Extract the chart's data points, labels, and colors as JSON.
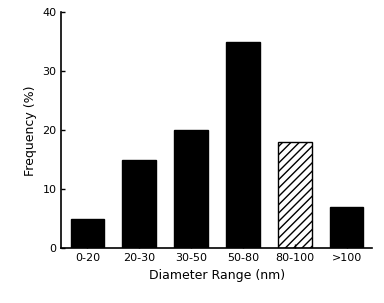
{
  "categories": [
    "0-20",
    "20-30",
    "30-50",
    "50-80",
    "80-100",
    ">100"
  ],
  "values": [
    5,
    15,
    20,
    35,
    18,
    7
  ],
  "bar_colors": [
    "black",
    "black",
    "black",
    "black",
    "white",
    "black"
  ],
  "hatch_patterns": [
    null,
    null,
    null,
    null,
    "////",
    null
  ],
  "xlabel": "Diameter Range (nm)",
  "ylabel": "Frequency (%)",
  "ylim": [
    0,
    40
  ],
  "yticks": [
    0,
    10,
    20,
    30,
    40
  ],
  "bar_width": 0.65,
  "edgecolor": "black",
  "background_color": "white",
  "tick_fontsize": 8,
  "label_fontsize": 9
}
